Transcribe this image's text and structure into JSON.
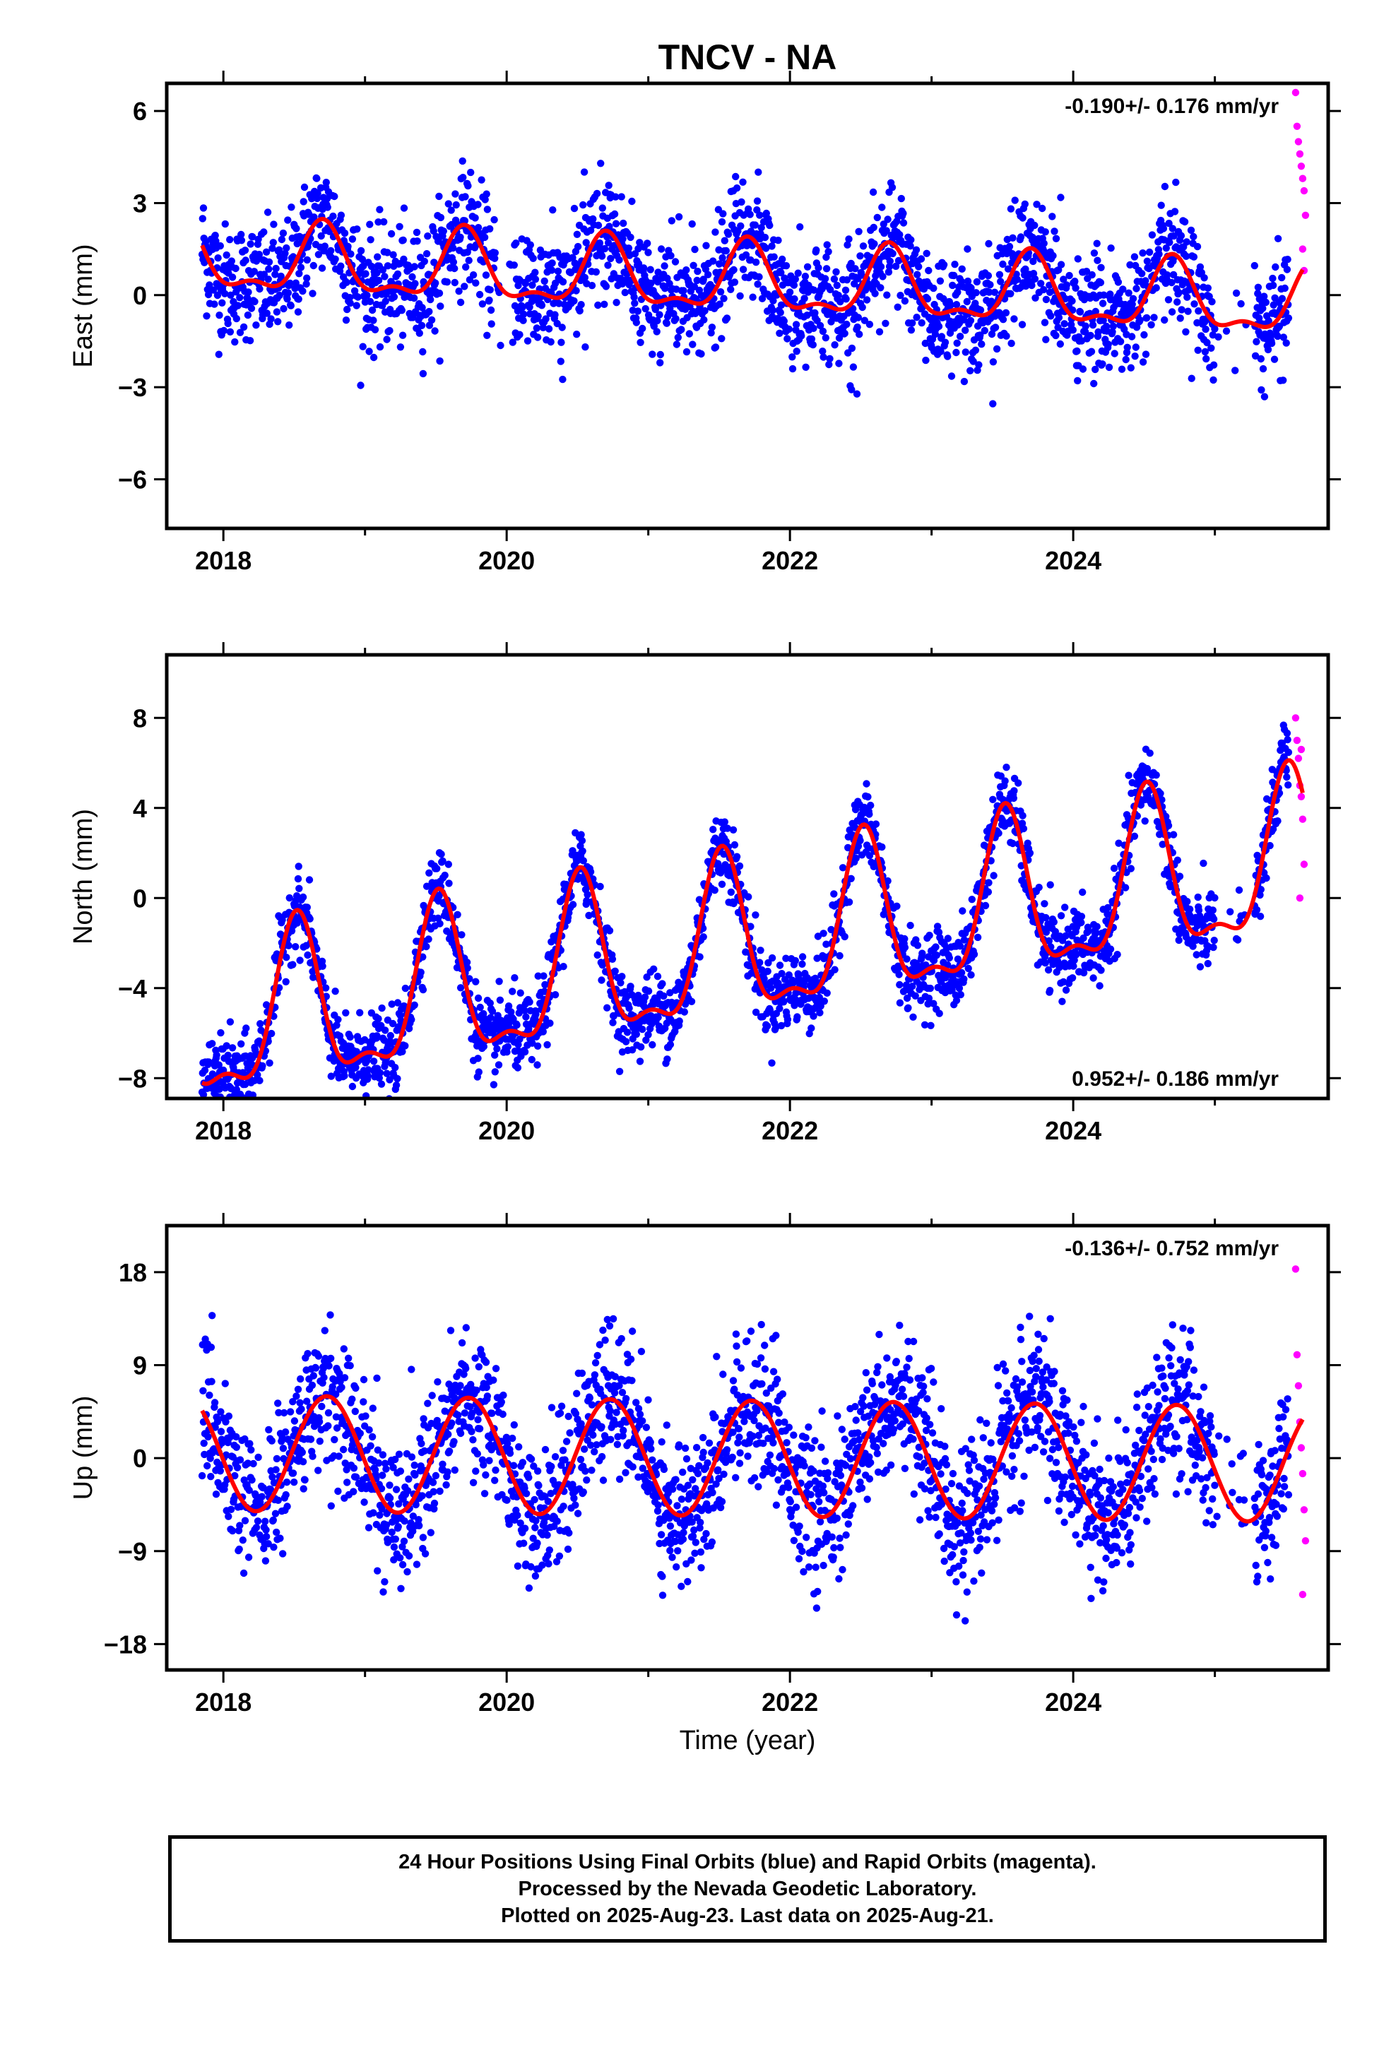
{
  "title": "TNCV - NA",
  "colors": {
    "final_orbits": "#0000ff",
    "rapid_orbits": "#ff00ff",
    "model": "#ff0000",
    "frame": "#000000"
  },
  "footer": {
    "line1": "24 Hour Positions Using Final Orbits (blue) and Rapid Orbits (magenta).",
    "line2": "Processed by the Nevada Geodetic Laboratory.",
    "line3": "Plotted on 2025-Aug-23. Last data on 2025-Aug-21."
  },
  "chart_data": [
    {
      "type": "scatter",
      "ylabel": "East (mm)",
      "xlim": [
        2017.6,
        2025.8
      ],
      "ylim": [
        -7.6,
        6.9
      ],
      "xticks": [
        2018,
        2020,
        2022,
        2024
      ],
      "xtick_labels": [
        "2018",
        "2020",
        "2022",
        "2024"
      ],
      "yticks": [
        -6,
        -3,
        0,
        3,
        6
      ],
      "ytick_labels": [
        "−6",
        "−3",
        "0",
        "3",
        "6"
      ],
      "rate": "-0.190+/- 0.176 mm/yr",
      "rate_position": "top-right",
      "series": [
        {
          "role": "final",
          "color": "#0000ff",
          "n": 2400,
          "x_start": 2017.85,
          "x_end": 2025.52,
          "trend": -0.19,
          "offset": 0.45,
          "annual": 1.05,
          "semiannual": 0.45,
          "phase": 0.7,
          "noise": 0.95,
          "gaps": [
            [
              2019.92,
              2020.05
            ],
            [
              2025.0,
              2025.28
            ]
          ]
        },
        {
          "role": "rapid",
          "color": "#ff00ff",
          "x": [
            2025.57,
            2025.58,
            2025.59,
            2025.6,
            2025.61,
            2025.62,
            2025.63,
            2025.64,
            2025.62,
            2025.63
          ],
          "y": [
            6.6,
            5.5,
            5.0,
            4.6,
            4.2,
            3.8,
            3.4,
            2.6,
            1.5,
            0.8
          ]
        }
      ],
      "model_line": {
        "x_start": 2017.85,
        "x_end": 2025.62,
        "trend": -0.19,
        "offset": 0.45,
        "annual": 1.05,
        "semiannual": 0.45,
        "phase": 0.7
      }
    },
    {
      "type": "scatter",
      "ylabel": "North (mm)",
      "xlim": [
        2017.6,
        2025.8
      ],
      "ylim": [
        -8.9,
        10.8
      ],
      "xticks": [
        2018,
        2020,
        2022,
        2024
      ],
      "xtick_labels": [
        "2018",
        "2020",
        "2022",
        "2024"
      ],
      "yticks": [
        -8,
        -4,
        0,
        4,
        8
      ],
      "ytick_labels": [
        "−8",
        "−4",
        "0",
        "4",
        "8"
      ],
      "rate": "0.952+/- 0.186 mm/yr",
      "rate_position": "bottom-right",
      "series": [
        {
          "role": "final",
          "color": "#0000ff",
          "n": 2400,
          "x_start": 2017.85,
          "x_end": 2025.52,
          "trend": 0.95,
          "offset": -2.4,
          "annual": 3.4,
          "semiannual": 1.3,
          "phase": 0.52,
          "noise": 0.85,
          "gaps": [
            [
              2025.0,
              2025.28
            ]
          ]
        },
        {
          "role": "rapid",
          "color": "#ff00ff",
          "x": [
            2025.57,
            2025.58,
            2025.59,
            2025.6,
            2025.61,
            2025.62,
            2025.63,
            2025.6,
            2025.61
          ],
          "y": [
            8.0,
            7.0,
            6.2,
            5.0,
            4.5,
            3.5,
            1.5,
            0.0,
            6.6
          ]
        }
      ],
      "model_line": {
        "x_start": 2017.85,
        "x_end": 2025.62,
        "trend": 0.95,
        "offset": -2.4,
        "annual": 3.4,
        "semiannual": 1.3,
        "phase": 0.52
      }
    },
    {
      "type": "scatter",
      "ylabel": "Up (mm)",
      "xlabel": "Time (year)",
      "xlim": [
        2017.6,
        2025.8
      ],
      "ylim": [
        -20.5,
        22.5
      ],
      "xticks": [
        2018,
        2020,
        2022,
        2024
      ],
      "xtick_labels": [
        "2018",
        "2020",
        "2022",
        "2024"
      ],
      "yticks": [
        -18,
        -9,
        0,
        9,
        18
      ],
      "ytick_labels": [
        "−18",
        "−9",
        "0",
        "9",
        "18"
      ],
      "rate": "-0.136+/- 0.752 mm/yr",
      "rate_position": "top-right",
      "series": [
        {
          "role": "final",
          "color": "#0000ff",
          "n": 2400,
          "x_start": 2017.85,
          "x_end": 2025.52,
          "trend": -0.14,
          "offset": 0.0,
          "annual": 5.6,
          "semiannual": 0.0,
          "phase": 0.73,
          "noise": 3.4,
          "gaps": [
            [
              2025.0,
              2025.28
            ]
          ]
        },
        {
          "role": "rapid",
          "color": "#ff00ff",
          "x": [
            2025.57,
            2025.58,
            2025.59,
            2025.6,
            2025.61,
            2025.62,
            2025.63,
            2025.64,
            2025.62
          ],
          "y": [
            18.3,
            10.0,
            7.0,
            3.5,
            1.0,
            -1.5,
            -5.0,
            -8.0,
            -13.2
          ]
        }
      ],
      "model_line": {
        "x_start": 2017.85,
        "x_end": 2025.62,
        "trend": -0.14,
        "offset": 0.0,
        "annual": 5.6,
        "semiannual": 0.0,
        "phase": 0.73
      }
    }
  ]
}
